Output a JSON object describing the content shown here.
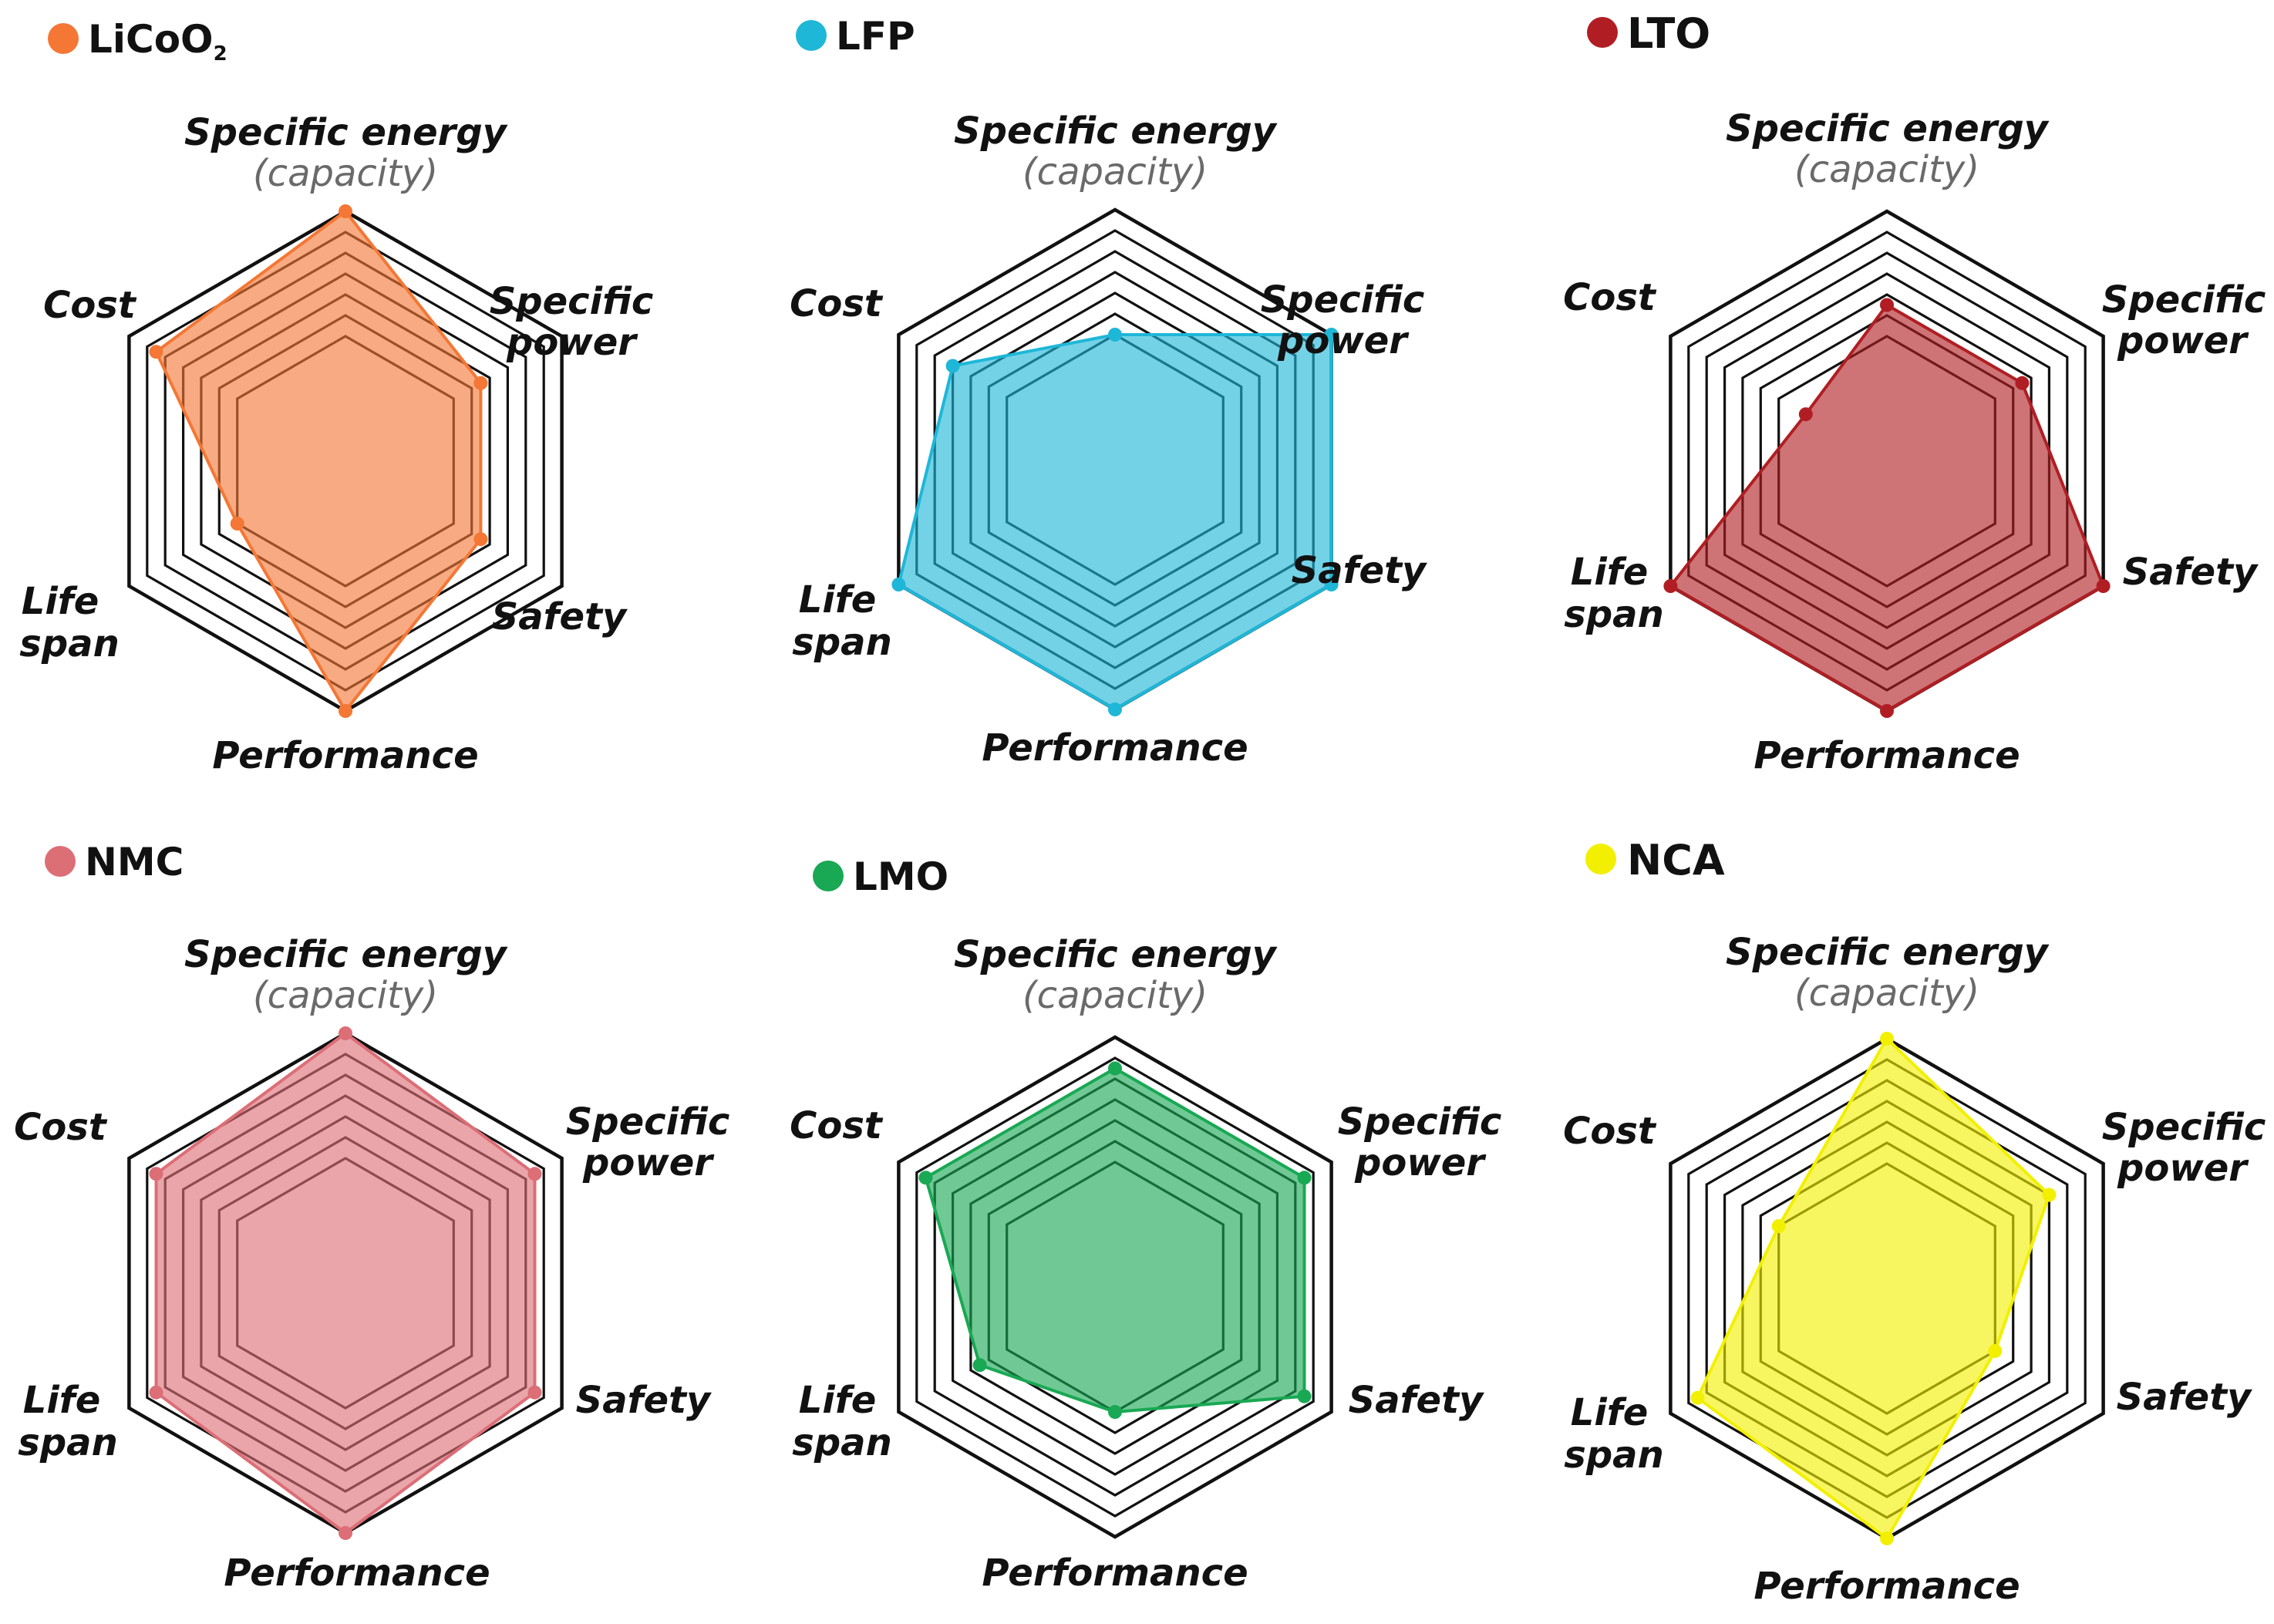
{
  "axis_labels": {
    "specific_energy": "Specific energy",
    "specific_energy_sub": "(capacity)",
    "specific_power_1": "Specific",
    "specific_power_2": "power",
    "safety": "Safety",
    "performance": "Performance",
    "life_span_1": "Life",
    "life_span_2": "span",
    "cost": "Cost"
  },
  "chart_data": [
    {
      "type": "radar",
      "title": "LiCoO₂",
      "color": "#f47735",
      "axes": [
        "Specific energy",
        "Specific power",
        "Safety",
        "Performance",
        "Life span",
        "Cost"
      ],
      "range": [
        0,
        8
      ],
      "values": [
        8,
        5,
        5,
        8,
        4,
        7
      ]
    },
    {
      "type": "radar",
      "title": "LFP",
      "color": "#1eb7d8",
      "axes": [
        "Specific energy",
        "Specific power",
        "Safety",
        "Performance",
        "Life span",
        "Cost"
      ],
      "range": [
        0,
        8
      ],
      "values": [
        4,
        8,
        8,
        8,
        8,
        6
      ]
    },
    {
      "type": "radar",
      "title": "LTO",
      "color": "#b01e23",
      "axes": [
        "Specific energy",
        "Specific power",
        "Safety",
        "Performance",
        "Life span",
        "Cost"
      ],
      "range": [
        0,
        8
      ],
      "values": [
        5,
        5,
        8,
        8,
        8,
        3
      ]
    },
    {
      "type": "radar",
      "title": "NMC",
      "color": "#dc6e76",
      "axes": [
        "Specific energy",
        "Specific power",
        "Safety",
        "Performance",
        "Life span",
        "Cost"
      ],
      "range": [
        0,
        8
      ],
      "values": [
        8,
        7,
        7,
        8,
        7,
        7
      ]
    },
    {
      "type": "radar",
      "title": "LMO",
      "color": "#19a854",
      "axes": [
        "Specific energy",
        "Specific power",
        "Safety",
        "Performance",
        "Life span",
        "Cost"
      ],
      "range": [
        0,
        8
      ],
      "values": [
        7,
        7,
        7,
        4,
        5,
        7
      ]
    },
    {
      "type": "radar",
      "title": "NCA",
      "color": "#f2f000",
      "axes": [
        "Specific energy",
        "Specific power",
        "Safety",
        "Performance",
        "Life span",
        "Cost"
      ],
      "range": [
        0,
        8
      ],
      "values": [
        8,
        6,
        4,
        8,
        7,
        4
      ]
    }
  ]
}
